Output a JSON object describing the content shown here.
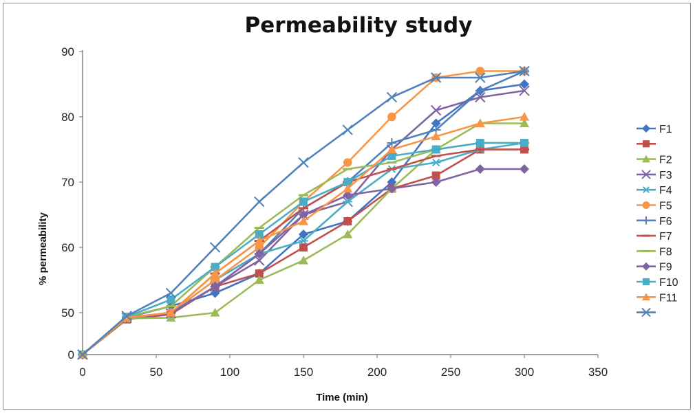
{
  "chart_data": {
    "type": "line",
    "title": "Permeability study",
    "xlabel": "Time (min)",
    "ylabel": "% permeability",
    "x": [
      0,
      30,
      60,
      90,
      120,
      150,
      180,
      210,
      240,
      270,
      300
    ],
    "xlim": [
      0,
      350
    ],
    "xticks": [
      0,
      50,
      100,
      150,
      200,
      250,
      300,
      350
    ],
    "yticks": [
      0,
      50,
      60,
      70,
      80,
      90
    ],
    "grid": false,
    "legend_position": "right",
    "series": [
      {
        "name": "F1",
        "color": "#4472C4",
        "marker": "diamond",
        "values": [
          0,
          44,
          51,
          53,
          56,
          62,
          64,
          70,
          79,
          84,
          85
        ]
      },
      {
        "name": "",
        "color": "#C0504D",
        "marker": "square",
        "values": [
          0,
          42,
          48,
          54,
          56,
          60,
          64,
          69,
          71,
          75,
          75
        ]
      },
      {
        "name": "F2",
        "color": "#9BBB59",
        "marker": "triangle",
        "values": [
          0,
          43,
          44,
          50,
          55,
          58,
          62,
          69,
          75,
          79,
          79
        ]
      },
      {
        "name": "F3",
        "color": "#8064A2",
        "marker": "x",
        "values": [
          0,
          44,
          49,
          54,
          58,
          65,
          67,
          75,
          81,
          83,
          84
        ]
      },
      {
        "name": "F4",
        "color": "#4BACC6",
        "marker": "star",
        "values": [
          0,
          44,
          50,
          55,
          59,
          61,
          67,
          72,
          73,
          75,
          76
        ]
      },
      {
        "name": "F5",
        "color": "#F79646",
        "marker": "circle",
        "values": [
          0,
          44,
          50,
          55,
          60,
          67,
          73,
          80,
          86,
          87,
          87
        ]
      },
      {
        "name": "F6",
        "color": "#4F81BD",
        "marker": "plus",
        "values": [
          0,
          44,
          50,
          54,
          59,
          66,
          70,
          76,
          78,
          84,
          87
        ]
      },
      {
        "name": "F7",
        "color": "#C0504D",
        "marker": "dash",
        "values": [
          0,
          44,
          50,
          56,
          61,
          66,
          70,
          72,
          74,
          75,
          75
        ]
      },
      {
        "name": "F8",
        "color": "#9BBB59",
        "marker": "dash",
        "values": [
          0,
          45,
          51,
          57,
          63,
          68,
          72,
          73,
          75,
          76,
          76
        ]
      },
      {
        "name": "F9",
        "color": "#8064A2",
        "marker": "diamond",
        "values": [
          0,
          44,
          49,
          54,
          59,
          65,
          68,
          69,
          70,
          72,
          72
        ]
      },
      {
        "name": "F10",
        "color": "#4BACC6",
        "marker": "square",
        "values": [
          0,
          45,
          52,
          57,
          62,
          67,
          70,
          74,
          75,
          76,
          76
        ]
      },
      {
        "name": "F11",
        "color": "#F79646",
        "marker": "triangle",
        "values": [
          0,
          44,
          50,
          56,
          61,
          64,
          69,
          75,
          77,
          79,
          80
        ]
      },
      {
        "name": "",
        "color": "#4F81BD",
        "marker": "x",
        "values": [
          0,
          46,
          53,
          60,
          67,
          73,
          78,
          83,
          86,
          86,
          87
        ]
      }
    ]
  }
}
